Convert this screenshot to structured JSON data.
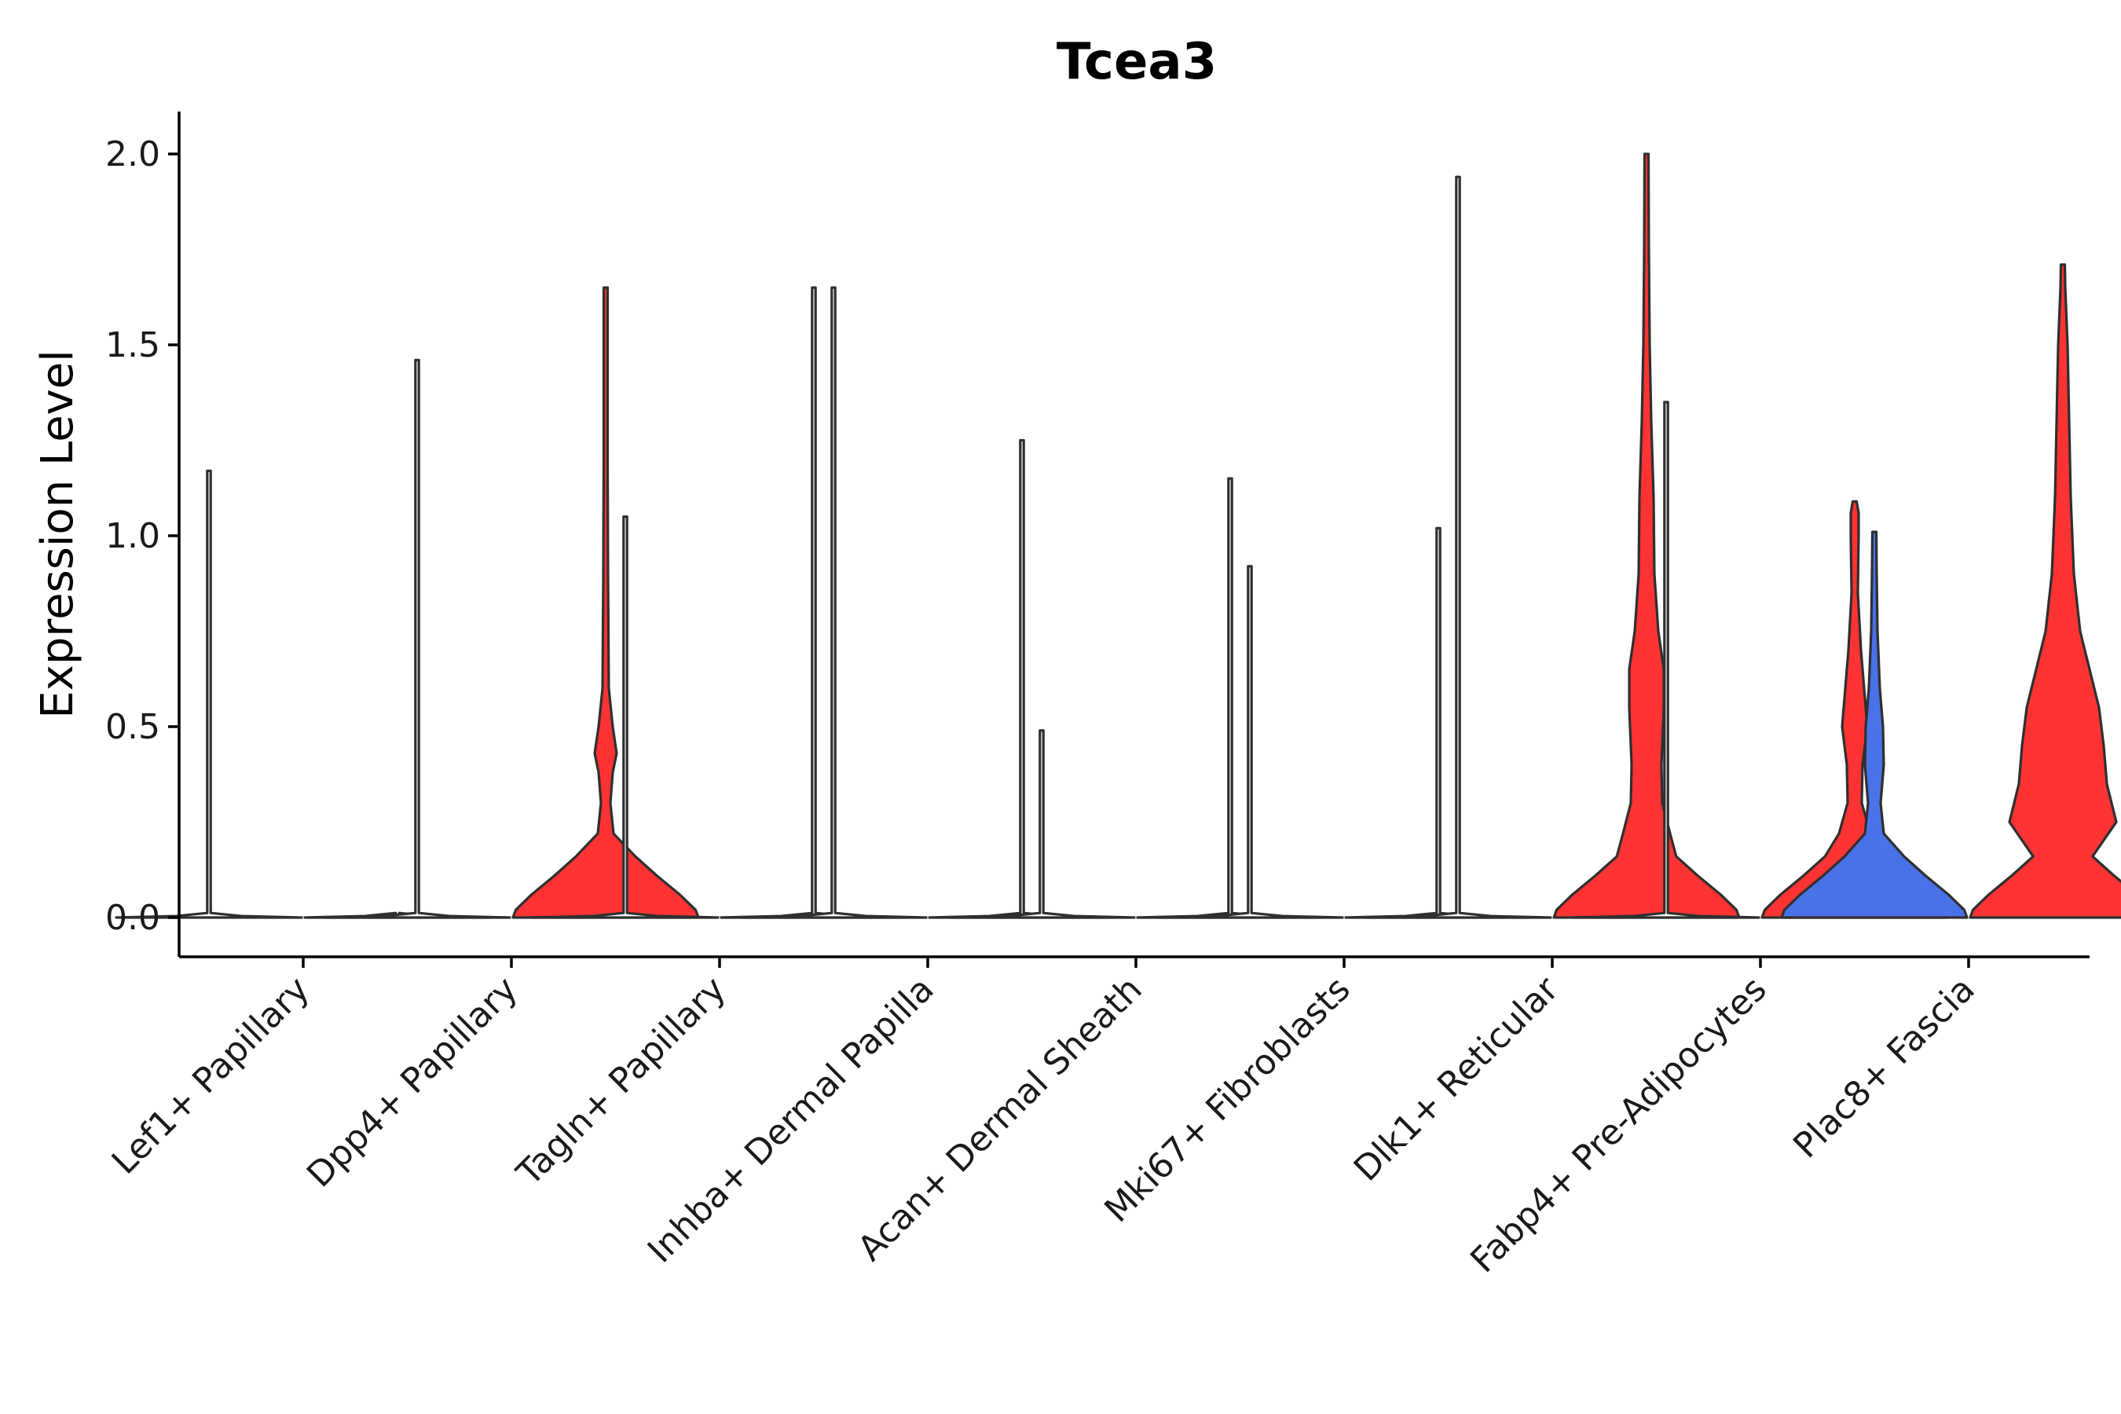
{
  "chart_data": {
    "type": "violin",
    "title": "Tcea3",
    "xlabel": "",
    "ylabel": "Expression Level",
    "ylim": [
      -0.1,
      2.1
    ],
    "yticks": [
      "0.0",
      "0.5",
      "1.0",
      "1.5",
      "2.0"
    ],
    "grid": false,
    "legend": "none",
    "colors": {
      "group_a": "#4A72E8",
      "group_b": "#FF3333",
      "outline": "#2f2f2f"
    },
    "categories": [
      "Lef1+ Papillary",
      "Dpp4+ Papillary",
      "Tagln+ Papillary",
      "Inhba+ Dermal Papilla",
      "Acan+ Dermal Sheath",
      "Mki67+ Fibroblasts",
      "Dlk1+ Reticular",
      "Fabp4+ Pre-Adipocytes",
      "Plac8+ Fascia"
    ],
    "series": [
      {
        "name": "group_a",
        "color": "#4A72E8",
        "max_values": [
          1.17,
          1.46,
          1.05,
          1.65,
          0.49,
          0.92,
          1.94,
          1.35,
          1.01
        ],
        "filled": [
          false,
          false,
          false,
          false,
          false,
          false,
          false,
          false,
          true
        ]
      },
      {
        "name": "group_b",
        "color": "#FF3333",
        "max_values": [
          0.0,
          1.65,
          1.65,
          1.25,
          1.15,
          1.02,
          2.0,
          1.09,
          1.71
        ],
        "filled": [
          false,
          true,
          false,
          false,
          false,
          false,
          true,
          true,
          true
        ]
      }
    ]
  }
}
